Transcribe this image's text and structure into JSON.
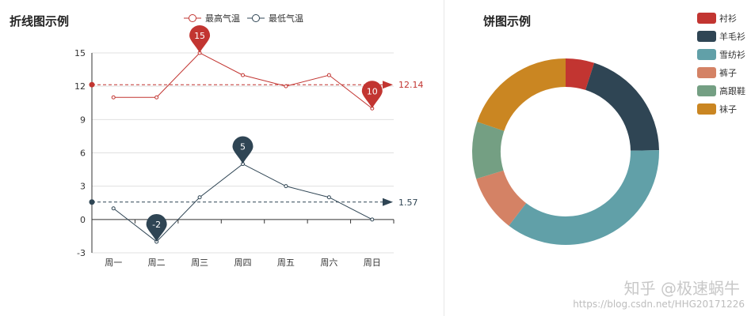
{
  "chart_data": [
    {
      "type": "line",
      "title": "折线图示例",
      "categories": [
        "周一",
        "周二",
        "周三",
        "周四",
        "周五",
        "周六",
        "周日"
      ],
      "ylim": [
        -3,
        15
      ],
      "yticks": [
        -3,
        0,
        3,
        6,
        9,
        12,
        15
      ],
      "grid": true,
      "legend_position": "top",
      "series": [
        {
          "name": "最高气温",
          "color": "#c23531",
          "values": [
            11,
            11,
            15,
            13,
            12,
            13,
            10
          ],
          "mark_points": [
            {
              "label": "15",
              "category_index": 2,
              "value": 15
            },
            {
              "label": "10",
              "category_index": 6,
              "value": 10
            }
          ],
          "mark_line": {
            "label": "12.14",
            "value": 12.14
          }
        },
        {
          "name": "最低气温",
          "color": "#2f4554",
          "values": [
            1,
            -2,
            2,
            5,
            3,
            2,
            0
          ],
          "mark_points": [
            {
              "label": "5",
              "category_index": 3,
              "value": 5
            },
            {
              "label": "-2",
              "category_index": 1,
              "value": -2
            }
          ],
          "mark_line": {
            "label": "1.57",
            "value": 1.57
          }
        }
      ]
    },
    {
      "type": "pie",
      "title": "饼图示例",
      "donut": true,
      "legend_position": "top-right",
      "slices": [
        {
          "name": "衬衫",
          "value": 5,
          "color": "#c23531"
        },
        {
          "name": "羊毛衫",
          "value": 20,
          "color": "#2f4554"
        },
        {
          "name": "雪纺衫",
          "value": 36,
          "color": "#61a0a8"
        },
        {
          "name": "裤子",
          "value": 10,
          "color": "#d48265"
        },
        {
          "name": "高跟鞋",
          "value": 10,
          "color": "#749f83"
        },
        {
          "name": "袜子",
          "value": 20,
          "color": "#ca8622"
        }
      ],
      "values_note_hidden": true
    }
  ],
  "watermark": {
    "main": "知乎 @极速蜗牛",
    "url": "https://blog.csdn.net/HHG20171226"
  }
}
